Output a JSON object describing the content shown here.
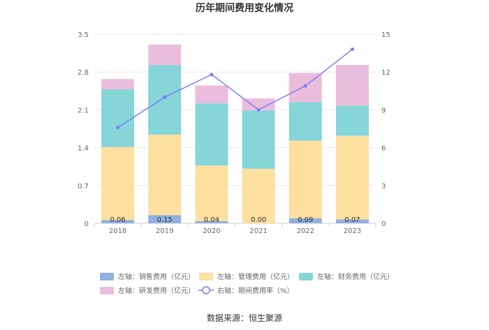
{
  "chart_data": {
    "type": "bar",
    "title": "历年期间费用变化情况",
    "categories": [
      "2018",
      "2019",
      "2020",
      "2021",
      "2022",
      "2023"
    ],
    "stacked": true,
    "left_axis": {
      "min": 0,
      "max": 3.5,
      "ticks": [
        "0",
        "0.7",
        "1.4",
        "2.1",
        "2.8",
        "3.5"
      ]
    },
    "right_axis": {
      "min": 0,
      "max": 15,
      "ticks": [
        "0",
        "3",
        "6",
        "9",
        "12",
        "15"
      ]
    },
    "series": [
      {
        "name": "左轴：销售费用（亿元）",
        "axis": "left",
        "type": "bar",
        "color": "#8fb0e0",
        "values": [
          0.06,
          0.15,
          0.04,
          0.0,
          0.09,
          0.07
        ],
        "labels": [
          "0.06",
          "0.15",
          "0.04",
          "0.00",
          "0.09",
          "0.07"
        ]
      },
      {
        "name": "左轴：管理费用（亿元）",
        "axis": "left",
        "type": "bar",
        "color": "#fddfa0",
        "values": [
          1.35,
          1.49,
          1.03,
          1.01,
          1.44,
          1.55
        ]
      },
      {
        "name": "左轴：财务费用（亿元）",
        "axis": "left",
        "type": "bar",
        "color": "#85d5d9",
        "values": [
          1.07,
          1.29,
          1.15,
          1.08,
          0.71,
          0.56
        ]
      },
      {
        "name": "左轴：研发费用（亿元）",
        "axis": "left",
        "type": "bar",
        "color": "#ebbddd",
        "values": [
          0.19,
          0.38,
          0.33,
          0.22,
          0.54,
          0.75
        ]
      },
      {
        "name": "右轴：期间费用率（%）",
        "axis": "right",
        "type": "line",
        "color": "#7b7ef5",
        "values": [
          7.6,
          10.0,
          11.8,
          9.0,
          10.9,
          13.8
        ]
      }
    ],
    "legend_position": "bottom",
    "source": "数据来源：恒生聚源"
  }
}
